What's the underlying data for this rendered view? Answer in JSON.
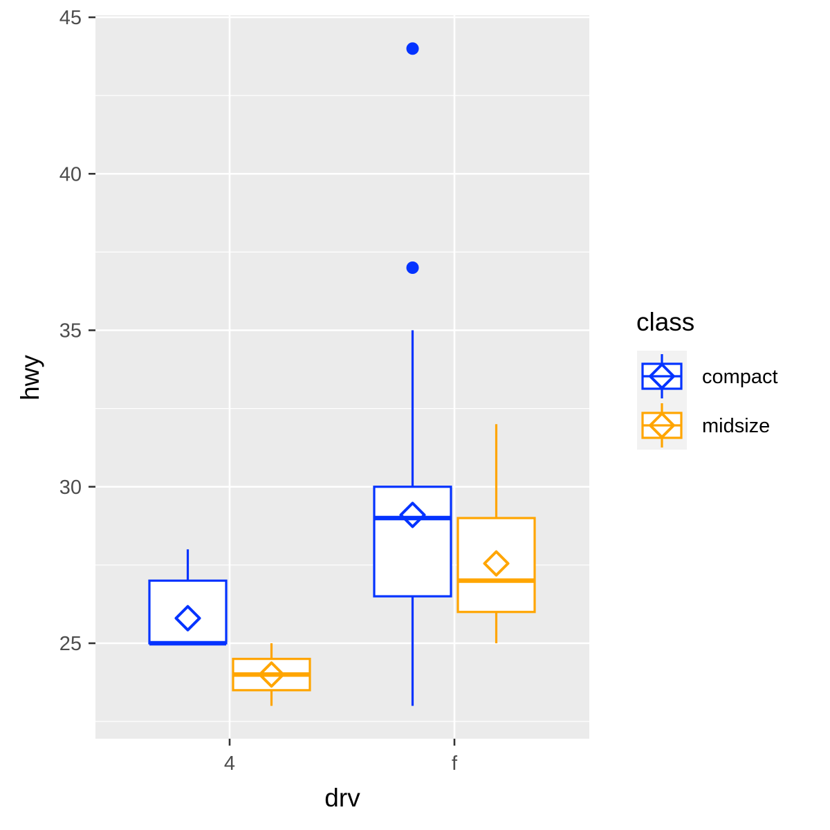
{
  "chart_data": {
    "type": "boxplot",
    "title": "",
    "xlabel": "drv",
    "ylabel": "hwy",
    "categories": [
      "4",
      "f"
    ],
    "ylim": [
      21.9,
      45.05
    ],
    "yticks": [
      25,
      30,
      35,
      40,
      45
    ],
    "grid": true,
    "legend": {
      "title": "class",
      "position": "right",
      "entries": [
        "compact",
        "midsize"
      ]
    },
    "colors": {
      "compact": "#0433FF",
      "midsize": "#FFA500"
    },
    "series": [
      {
        "name": "compact",
        "color": "#0433FF",
        "boxes": [
          {
            "category": "4",
            "lower_whisker": 25,
            "q1": 25,
            "median": 25,
            "q3": 27,
            "upper_whisker": 28,
            "mean": 25.8,
            "outliers": []
          },
          {
            "category": "f",
            "lower_whisker": 23,
            "q1": 26.5,
            "median": 29,
            "q3": 30,
            "upper_whisker": 35,
            "mean": 29.1,
            "outliers": [
              37,
              44
            ]
          }
        ]
      },
      {
        "name": "midsize",
        "color": "#FFA500",
        "boxes": [
          {
            "category": "4",
            "lower_whisker": 23,
            "q1": 23.5,
            "median": 24,
            "q3": 24.5,
            "upper_whisker": 25,
            "mean": 24.0,
            "outliers": []
          },
          {
            "category": "f",
            "lower_whisker": 25,
            "q1": 26,
            "median": 27,
            "q3": 29,
            "upper_whisker": 32,
            "mean": 27.55,
            "outliers": []
          }
        ]
      }
    ]
  },
  "axes": {
    "x_title": "drv",
    "y_title": "hwy",
    "x_tick_labels": [
      "4",
      "f"
    ],
    "y_tick_labels": [
      "25",
      "30",
      "35",
      "40",
      "45"
    ]
  },
  "legend": {
    "title": "class",
    "items": [
      {
        "label": "compact",
        "color": "#0433FF"
      },
      {
        "label": "midsize",
        "color": "#FFA500"
      }
    ]
  },
  "style": {
    "panel_bg": "#EBEBEB",
    "grid_color": "#FFFFFF",
    "box_fill": "#FFFFFF",
    "legend_key_bg": "#F2F2F2"
  }
}
